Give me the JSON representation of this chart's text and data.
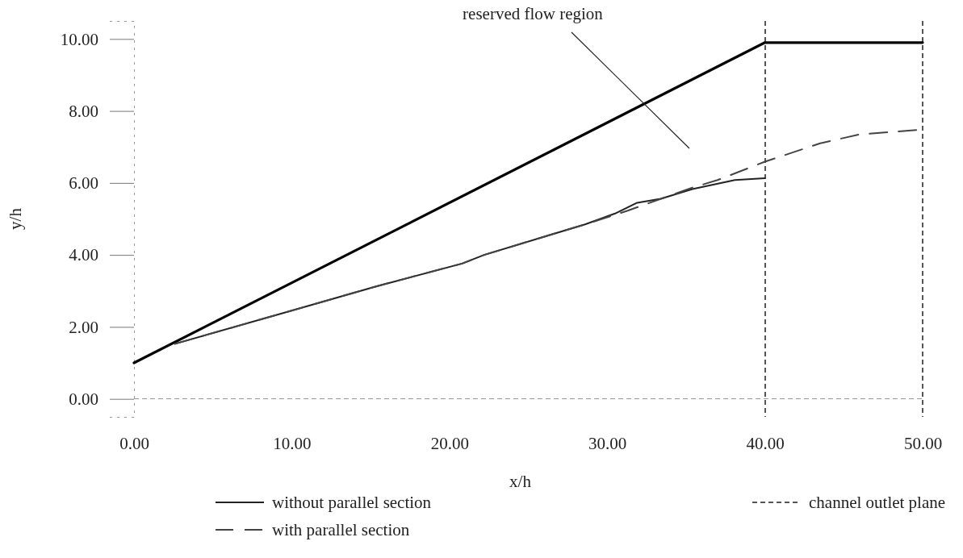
{
  "chart_data": {
    "type": "line",
    "xlabel": "x/h",
    "ylabel": "y/h",
    "xlim": [
      0,
      50
    ],
    "ylim": [
      -0.5,
      10.5
    ],
    "xticks": [
      {
        "value": 0,
        "label": "0.00"
      },
      {
        "value": 10,
        "label": "10.00"
      },
      {
        "value": 20,
        "label": "20.00"
      },
      {
        "value": 30,
        "label": "30.00"
      },
      {
        "value": 40,
        "label": "40.00"
      },
      {
        "value": 50,
        "label": "50.00"
      }
    ],
    "yticks": [
      {
        "value": 0,
        "label": "0.00"
      },
      {
        "value": 2,
        "label": "2.00"
      },
      {
        "value": 4,
        "label": "4.00"
      },
      {
        "value": 6,
        "label": "6.00"
      },
      {
        "value": 8,
        "label": "8.00"
      },
      {
        "value": 10,
        "label": "10.00"
      }
    ],
    "grid": false,
    "legend": "bottom",
    "marker": "none",
    "annotations": [
      "reserved flow region"
    ],
    "ref_lines": [
      {
        "axis": "y",
        "value": 0,
        "color": "#999999",
        "line_style": "dotted"
      },
      {
        "axis": "x",
        "value": 40,
        "label": "channel outlet plane",
        "color": "#555555",
        "line_style": "dotted"
      },
      {
        "axis": "x",
        "value": 50,
        "color": "#555555",
        "line_style": "dotted"
      }
    ],
    "series": [
      {
        "color": "#000000",
        "line_style": "solid",
        "x": [
          0,
          40,
          50
        ],
        "values": [
          1.0,
          9.9,
          9.9
        ]
      },
      {
        "name": "without parallel section",
        "color": "#222222",
        "line_style": "solid",
        "x": [
          2.6,
          9.9,
          15.3,
          20.8,
          22.2,
          26.1,
          28.6,
          30.5,
          31.9,
          33.4,
          35.4,
          38.1,
          40
        ],
        "values": [
          1.53,
          2.44,
          3.12,
          3.76,
          4.0,
          4.52,
          4.85,
          5.15,
          5.45,
          5.56,
          5.83,
          6.08,
          6.13
        ]
      },
      {
        "name": "with parallel section",
        "color": "#444444",
        "line_style": "dashed",
        "x": [
          2.6,
          9.9,
          15.3,
          20.8,
          22.2,
          26.1,
          28.6,
          31.3,
          35.4,
          37.0,
          40,
          43.5,
          46.0,
          49.9
        ],
        "values": [
          1.53,
          2.44,
          3.12,
          3.76,
          4.0,
          4.52,
          4.85,
          5.23,
          5.87,
          6.08,
          6.59,
          7.1,
          7.35,
          7.48
        ]
      }
    ]
  }
}
